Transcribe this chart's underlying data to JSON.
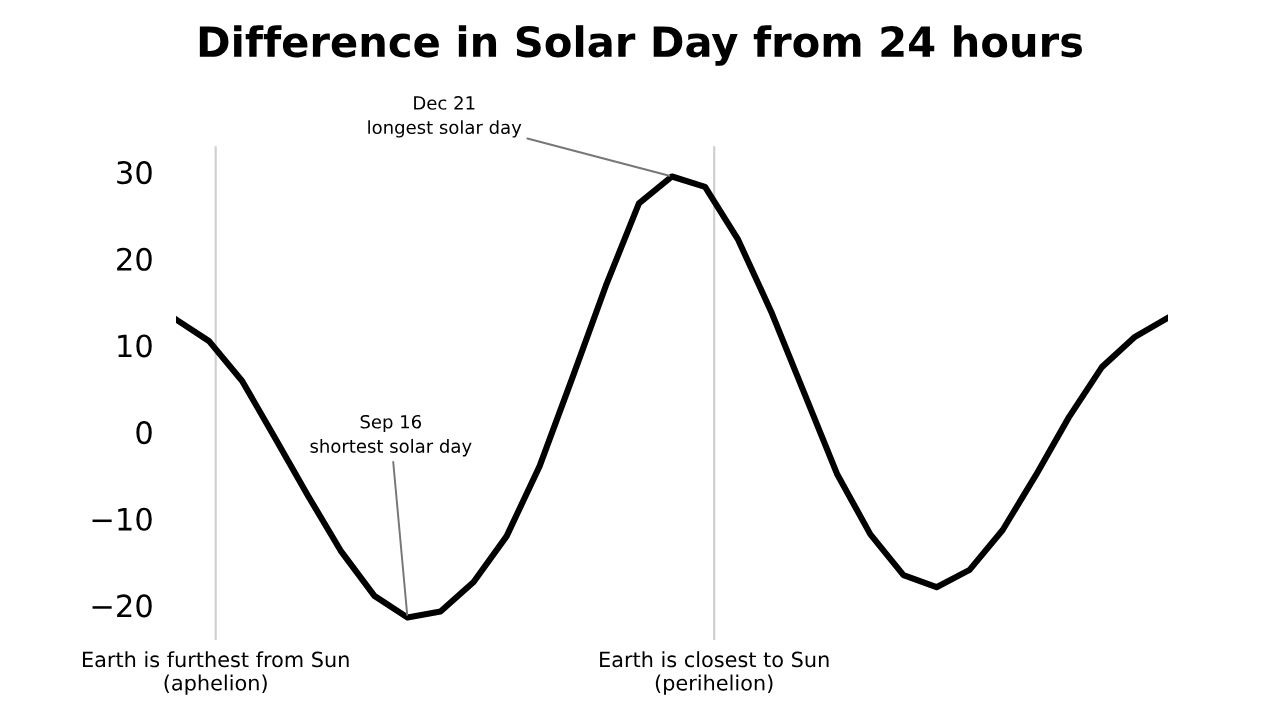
{
  "chart_data": {
    "type": "line",
    "title": "Difference in Solar Day from 24 hours",
    "categories": [
      null,
      null,
      null,
      null,
      null,
      null,
      null,
      null,
      null,
      null,
      null,
      null,
      null,
      null,
      null,
      null,
      null,
      null,
      null,
      null,
      null,
      null,
      null,
      null,
      null,
      null,
      null,
      null,
      null,
      null,
      null
    ],
    "series": [
      {
        "color": "#000000",
        "values": [
          13.0,
          10.5,
          5.9,
          -0.7,
          -7.4,
          -13.8,
          -18.9,
          -21.4,
          -20.7,
          -17.3,
          -12.0,
          -3.9,
          6.4,
          16.9,
          26.4,
          29.5,
          28.3,
          22.2,
          13.9,
          4.5,
          -4.9,
          -11.8,
          -16.5,
          -17.9,
          -15.9,
          -11.3,
          -5.0,
          1.7,
          7.5,
          11.0,
          13.2
        ]
      }
    ],
    "ylim": [
      -24,
      33
    ],
    "yticks": [
      {
        "value": -20,
        "label": "−20"
      },
      {
        "value": -10,
        "label": "−10"
      },
      0,
      10,
      20,
      30
    ],
    "tick_labels": "y",
    "grid": false,
    "legend": false,
    "marker": "none",
    "line_style": "solid",
    "annotations": [
      "Earth is furthest from Sun\n(aphelion)",
      "Earth is closest to Sun\n(perihelion)",
      "Dec 21\nlongest solar day",
      "Sep 16\nshortest solar day"
    ]
  }
}
